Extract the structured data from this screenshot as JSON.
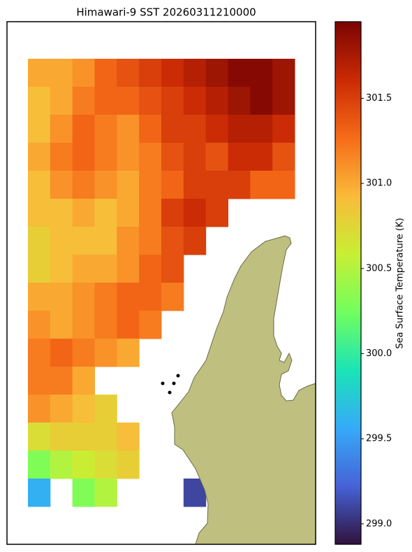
{
  "chart_data": {
    "type": "heatmap",
    "title": "Himawari-9 SST 20260311210000",
    "colorbar_label": "Sea Surface Temperature (K)",
    "colormap": [
      "#30123b",
      "#4662d7",
      "#36aaf9",
      "#1ae4b6",
      "#72fe5e",
      "#c8ef34",
      "#faba39",
      "#f66b19",
      "#ca2a04",
      "#7a0403"
    ],
    "clim": [
      298.88,
      301.95
    ],
    "cticks": [
      {
        "value": 299,
        "label": "299.0"
      },
      299.5,
      {
        "value": 300,
        "label": "300.0"
      },
      300.5,
      {
        "value": 301,
        "label": "301.0"
      },
      301.5
    ],
    "values": [
      [
        301.0,
        301.0,
        301.1,
        301.3,
        301.4,
        301.5,
        301.6,
        301.7,
        301.8,
        301.9,
        301.9,
        301.8
      ],
      [
        300.9,
        301.0,
        301.2,
        301.3,
        301.3,
        301.4,
        301.5,
        301.6,
        301.7,
        301.8,
        301.9,
        301.8
      ],
      [
        300.9,
        301.1,
        301.3,
        301.2,
        301.1,
        301.3,
        301.5,
        301.5,
        301.6,
        301.7,
        301.7,
        301.6
      ],
      [
        301.0,
        301.2,
        301.3,
        301.2,
        301.1,
        301.2,
        301.4,
        301.5,
        301.4,
        301.6,
        301.6,
        301.4
      ],
      [
        300.9,
        301.1,
        301.2,
        301.1,
        301.0,
        301.2,
        301.3,
        301.5,
        301.5,
        301.5,
        301.3,
        301.3
      ],
      [
        300.9,
        300.9,
        301.0,
        300.9,
        301.0,
        301.2,
        301.5,
        301.6,
        301.5,
        null,
        null,
        null
      ],
      [
        300.8,
        300.9,
        300.9,
        300.9,
        301.1,
        301.2,
        301.4,
        301.5,
        null,
        null,
        null,
        null
      ],
      [
        300.8,
        300.9,
        301.0,
        301.0,
        301.1,
        301.3,
        301.4,
        null,
        null,
        null,
        null,
        null
      ],
      [
        301.0,
        301.0,
        301.1,
        301.2,
        301.3,
        301.3,
        301.2,
        null,
        null,
        null,
        null,
        null
      ],
      [
        301.1,
        301.0,
        301.1,
        301.2,
        301.3,
        301.2,
        null,
        null,
        null,
        null,
        null,
        null
      ],
      [
        301.2,
        301.3,
        301.2,
        301.1,
        301.0,
        null,
        null,
        null,
        null,
        null,
        null,
        null
      ],
      [
        301.2,
        301.2,
        301.0,
        null,
        null,
        null,
        null,
        null,
        null,
        null,
        null,
        null
      ],
      [
        301.1,
        301.0,
        300.9,
        300.8,
        null,
        null,
        null,
        null,
        null,
        null,
        null,
        null
      ],
      [
        300.7,
        300.8,
        300.8,
        300.8,
        300.9,
        null,
        null,
        null,
        null,
        null,
        null,
        null
      ],
      [
        300.3,
        300.5,
        300.6,
        300.7,
        300.8,
        null,
        null,
        null,
        null,
        null,
        null,
        null
      ],
      [
        299.6,
        null,
        300.3,
        300.5,
        null,
        null,
        null,
        299.1,
        null,
        null,
        null,
        null
      ]
    ]
  }
}
